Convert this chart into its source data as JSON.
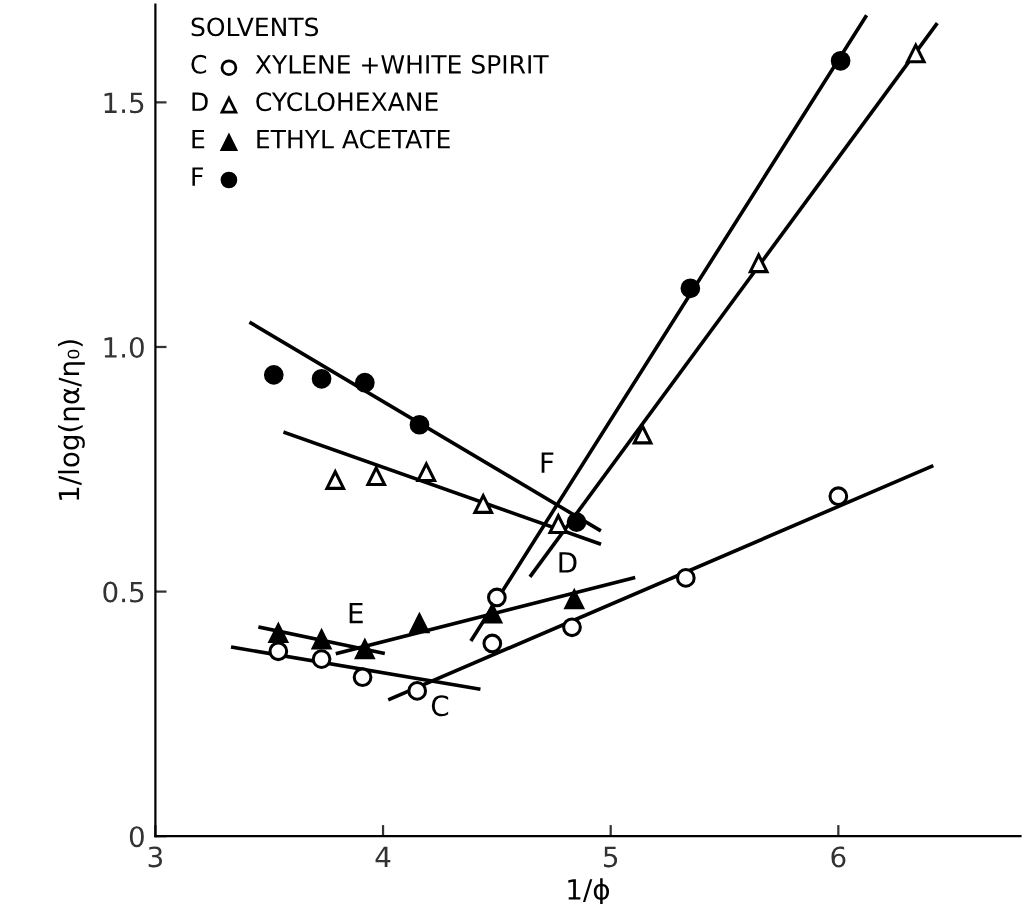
{
  "chart_data": {
    "type": "scatter",
    "xlabel": "1/ϕ",
    "ylabel": "1/log(ηα/η₀)",
    "legend_title": "SOLVENTS",
    "legend": "top left",
    "grid": false,
    "xlim": [
      3,
      6.8
    ],
    "ylim": [
      0,
      1.7
    ],
    "xticks": [
      3,
      4,
      5,
      6
    ],
    "yticks": [
      {
        "value": 0,
        "label": "0"
      },
      0.5,
      {
        "value": 1,
        "label": "1.0"
      },
      1.5
    ],
    "series": [
      {
        "name": "C XYLENE +WHITE SPIRIT",
        "color": "#000000",
        "marker": "circle-open",
        "x": [
          3.54,
          3.73,
          3.91,
          4.15,
          4.48,
          4.5,
          4.83,
          5.33,
          6.0
        ],
        "values": [
          0.378,
          0.362,
          0.325,
          0.297,
          0.394,
          0.488,
          0.427,
          0.528,
          0.695
        ]
      },
      {
        "name": "D CYCLOHEXANE",
        "color": "#000000",
        "marker": "triangle-open",
        "x": [
          3.79,
          3.97,
          4.19,
          4.44,
          4.77,
          5.14,
          5.65,
          6.34
        ],
        "values": [
          0.728,
          0.736,
          0.744,
          0.679,
          0.638,
          0.821,
          1.171,
          1.6
        ]
      },
      {
        "name": "E ETHYL ACETATE",
        "color": "#000000",
        "marker": "triangle",
        "x": [
          3.54,
          3.73,
          3.92,
          4.16,
          4.48,
          4.84
        ],
        "values": [
          0.415,
          0.402,
          0.382,
          0.435,
          0.455,
          0.484
        ]
      },
      {
        "name": "F",
        "color": "#000000",
        "marker": "circle",
        "x": [
          3.52,
          3.73,
          3.92,
          4.16,
          4.85,
          5.35,
          6.01
        ],
        "values": [
          0.943,
          0.935,
          0.927,
          0.841,
          0.642,
          1.12,
          1.585
        ]
      },
      {
        "type": "line",
        "color": "#000000",
        "x": [
          3.34,
          4.42
        ],
        "values": [
          0.386,
          0.301
        ]
      },
      {
        "type": "line",
        "color": "#000000",
        "x": [
          4.03,
          6.41
        ],
        "values": [
          0.28,
          0.756
        ]
      },
      {
        "type": "line",
        "color": "#000000",
        "x": [
          3.57,
          4.95
        ],
        "values": [
          0.825,
          0.598
        ]
      },
      {
        "type": "line",
        "color": "#000000",
        "x": [
          4.65,
          6.43
        ],
        "values": [
          0.533,
          1.659
        ]
      },
      {
        "type": "line",
        "color": "#000000",
        "x": [
          3.46,
          4.0
        ],
        "values": [
          0.427,
          0.374
        ]
      },
      {
        "type": "line",
        "color": "#000000",
        "x": [
          3.8,
          5.1
        ],
        "values": [
          0.374,
          0.528
        ]
      },
      {
        "type": "line",
        "color": "#000000",
        "x": [
          3.42,
          4.95
        ],
        "values": [
          1.049,
          0.626
        ]
      },
      {
        "type": "line",
        "color": "#000000",
        "x": [
          4.39,
          6.12
        ],
        "values": [
          0.402,
          1.675
        ]
      }
    ],
    "annotations": [
      {
        "text": "C",
        "x": 4.25,
        "y": 0.324
      },
      {
        "text": "D",
        "x": 4.81,
        "y": 0.634
      },
      {
        "text": "E",
        "x": 3.88,
        "y": 0.383
      },
      {
        "text": "F",
        "x": 4.72,
        "y": 0.645
      }
    ]
  }
}
